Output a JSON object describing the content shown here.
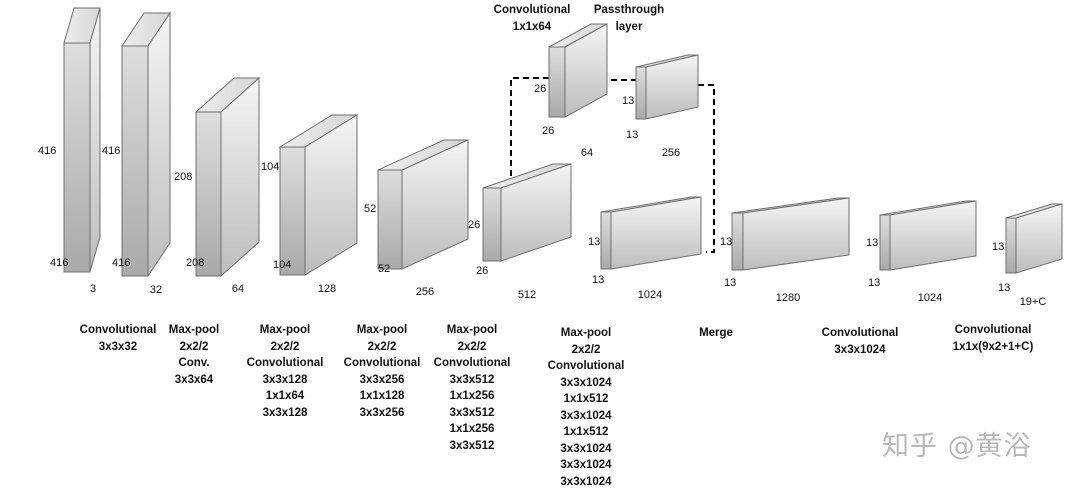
{
  "blocks": [
    {
      "id": "input",
      "dims": [
        "416",
        "416",
        "3"
      ]
    },
    {
      "id": "conv1",
      "dims": [
        "416",
        "416",
        "32"
      ]
    },
    {
      "id": "pool1",
      "dims": [
        "208",
        "208",
        "64"
      ]
    },
    {
      "id": "pool2",
      "dims": [
        "104",
        "104",
        "128"
      ]
    },
    {
      "id": "pool3",
      "dims": [
        "52",
        "52",
        "256"
      ]
    },
    {
      "id": "pool4",
      "dims": [
        "26",
        "26",
        "512"
      ]
    },
    {
      "id": "pool5",
      "dims": [
        "13",
        "13",
        "1024"
      ]
    },
    {
      "id": "merge",
      "dims": [
        "13",
        "13",
        "1280"
      ]
    },
    {
      "id": "conv6",
      "dims": [
        "13",
        "13",
        "1024"
      ]
    },
    {
      "id": "output",
      "dims": [
        "13",
        "13",
        "19+C"
      ]
    },
    {
      "id": "conv1x1",
      "dims": [
        "26",
        "26",
        "64"
      ]
    },
    {
      "id": "pass",
      "dims": [
        "13",
        "13",
        "256"
      ]
    }
  ],
  "labels": [
    {
      "id": "conv-3x3x32",
      "lines": [
        "Convolutional",
        "3x3x32"
      ]
    },
    {
      "id": "stage-2",
      "lines": [
        "Max-pool",
        "2x2/2",
        "Conv.",
        "3x3x64"
      ]
    },
    {
      "id": "stage-3",
      "lines": [
        "Max-pool",
        "2x2/2",
        "Convolutional",
        "3x3x128",
        "1x1x64",
        "3x3x128"
      ]
    },
    {
      "id": "stage-4",
      "lines": [
        "Max-pool",
        "2x2/2",
        "Convolutional",
        "3x3x256",
        "1x1x128",
        "3x3x256"
      ]
    },
    {
      "id": "stage-5",
      "lines": [
        "Max-pool",
        "2x2/2",
        "Convolutional",
        "3x3x512",
        "1x1x256",
        "3x3x512",
        "1x1x256",
        "3x3x512"
      ]
    },
    {
      "id": "stage-6",
      "lines": [
        "Max-pool",
        "2x2/2",
        "Convolutional",
        "3x3x1024",
        "1x1x512",
        "3x3x1024",
        "1x1x512",
        "3x3x1024",
        "3x3x1024",
        "3x3x1024"
      ]
    },
    {
      "id": "merge",
      "lines": [
        "Merge"
      ]
    },
    {
      "id": "conv-3x3x1024",
      "lines": [
        "Convolutional",
        "3x3x1024"
      ]
    },
    {
      "id": "conv-out",
      "lines": [
        "Convolutional",
        "1x1x(9x2+1+C)"
      ]
    },
    {
      "id": "conv-1x1x64",
      "lines": [
        "Convolutional",
        "1x1x64"
      ]
    },
    {
      "id": "passthrough",
      "lines": [
        "Passthrough",
        "layer"
      ]
    }
  ],
  "watermark": "知乎 @黄浴",
  "colors": {
    "face_light": "#f4f4f4",
    "face_dark": "#bdbdbd",
    "stroke": "#6f6f6f",
    "dashed": "#000000"
  }
}
